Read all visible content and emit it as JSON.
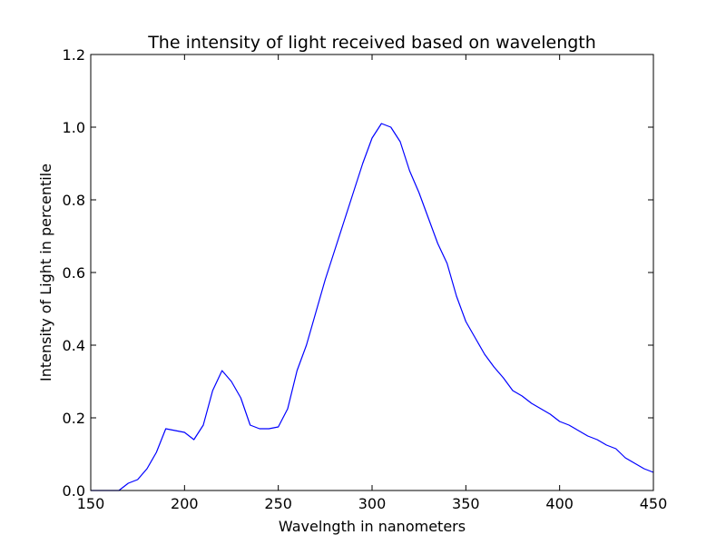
{
  "chart_data": {
    "type": "line",
    "title": "The intensity of light received based on wavelength",
    "xlabel": "Wavelngth in nanometers",
    "ylabel": "Intensity of Light in percentile",
    "xlim": [
      150,
      450
    ],
    "ylim": [
      0.0,
      1.2
    ],
    "xticks": [
      "150",
      "200",
      "250",
      "300",
      "350",
      "400",
      "450"
    ],
    "yticks": [
      "0.0",
      "0.2",
      "0.4",
      "0.6",
      "0.8",
      "1.0",
      "1.2"
    ],
    "grid": false,
    "line_color": "#0000ff",
    "series": [
      {
        "x": [
          150,
          155,
          160,
          165,
          170,
          175,
          180,
          185,
          190,
          195,
          200,
          205,
          210,
          215,
          220,
          225,
          230,
          235,
          240,
          245,
          250,
          255,
          260,
          265,
          270,
          275,
          280,
          285,
          290,
          295,
          300,
          305,
          310,
          315,
          320,
          325,
          330,
          335,
          340,
          345,
          350,
          355,
          360,
          365,
          370,
          375,
          380,
          385,
          390,
          395,
          400,
          405,
          410,
          415,
          420,
          425,
          430,
          435,
          440,
          445,
          450
        ],
        "values": [
          0.0,
          0.0,
          0.0,
          0.0,
          0.02,
          0.03,
          0.06,
          0.105,
          0.17,
          0.165,
          0.16,
          0.14,
          0.18,
          0.275,
          0.33,
          0.3,
          0.255,
          0.18,
          0.17,
          0.17,
          0.175,
          0.225,
          0.33,
          0.4,
          0.49,
          0.58,
          0.66,
          0.74,
          0.82,
          0.9,
          0.97,
          1.01,
          1.0,
          0.96,
          0.88,
          0.82,
          0.75,
          0.68,
          0.625,
          0.535,
          0.465,
          0.42,
          0.375,
          0.34,
          0.31,
          0.275,
          0.26,
          0.24,
          0.225,
          0.21,
          0.19,
          0.18,
          0.165,
          0.15,
          0.14,
          0.125,
          0.115,
          0.09,
          0.075,
          0.06,
          0.05
        ]
      }
    ]
  }
}
